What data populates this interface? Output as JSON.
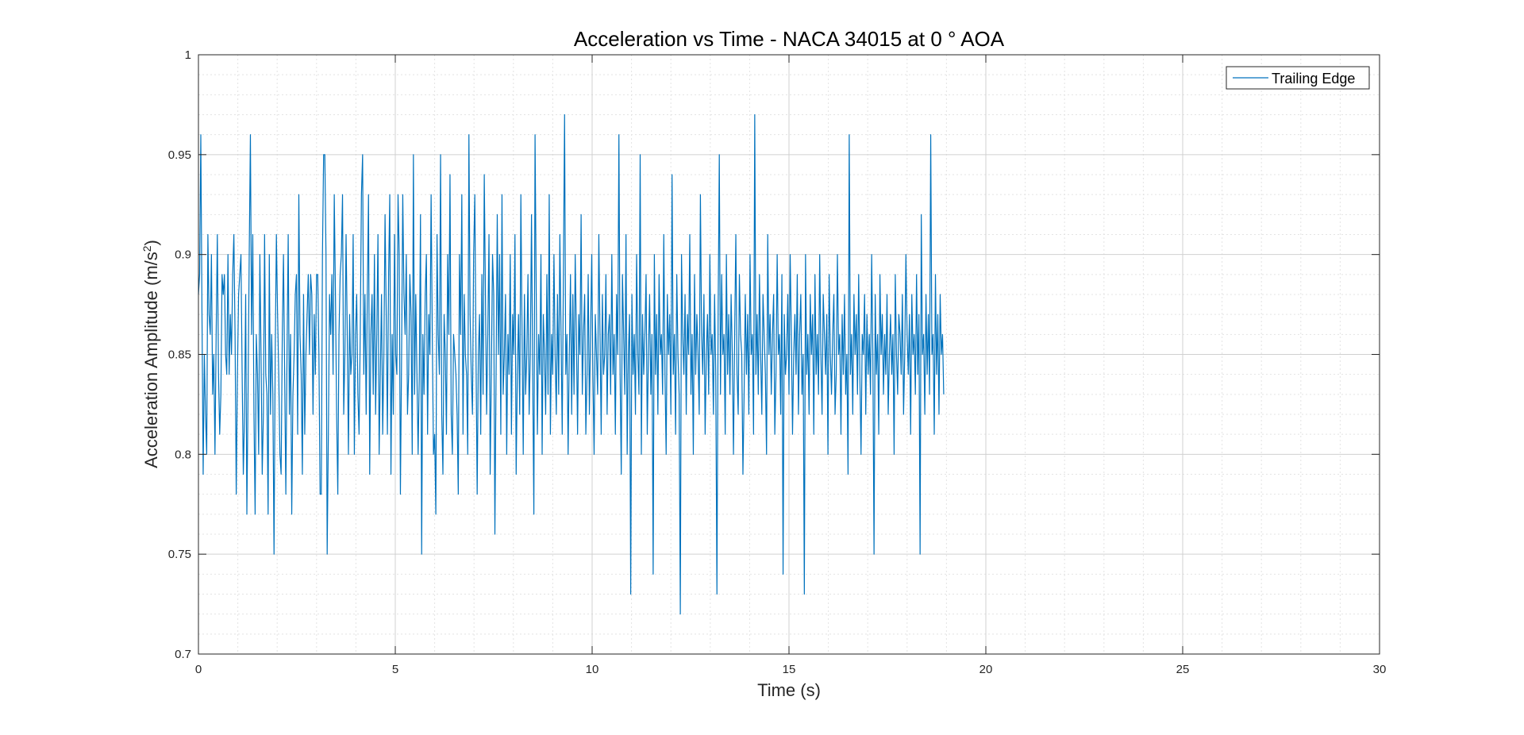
{
  "chart_data": {
    "type": "line",
    "title": "Acceleration vs Time - NACA 34015 at 0 ° AOA",
    "xlabel": "Time (s)",
    "ylabel_main": "Acceleration Amplitude (m/s",
    "ylabel_sup": "2",
    "ylabel_close": ")",
    "xlim": [
      0,
      30
    ],
    "ylim": [
      0.7,
      1.0
    ],
    "xticks": [
      "0",
      "5",
      "10",
      "15",
      "20",
      "25",
      "30"
    ],
    "yticks": [
      "0.7",
      "0.75",
      "0.8",
      "0.85",
      "0.9",
      "0.95",
      "1"
    ],
    "grid": true,
    "minor_grid": true,
    "legend_position": "top-right",
    "series": [
      {
        "name": "Trailing Edge",
        "color": "#0072BD",
        "dt": 0.03,
        "values": [
          0.88,
          0.89,
          0.96,
          0.87,
          0.79,
          0.85,
          0.82,
          0.8,
          0.91,
          0.87,
          0.86,
          0.9,
          0.83,
          0.85,
          0.8,
          0.86,
          0.91,
          0.84,
          0.81,
          0.83,
          0.89,
          0.88,
          0.89,
          0.85,
          0.84,
          0.9,
          0.84,
          0.87,
          0.85,
          0.89,
          0.91,
          0.86,
          0.78,
          0.84,
          0.88,
          0.89,
          0.9,
          0.84,
          0.79,
          0.82,
          0.88,
          0.77,
          0.83,
          0.9,
          0.96,
          0.86,
          0.91,
          0.82,
          0.77,
          0.86,
          0.84,
          0.8,
          0.9,
          0.85,
          0.79,
          0.82,
          0.91,
          0.84,
          0.83,
          0.77,
          0.9,
          0.82,
          0.86,
          0.83,
          0.75,
          0.85,
          0.91,
          0.87,
          0.84,
          0.8,
          0.79,
          0.86,
          0.9,
          0.84,
          0.78,
          0.85,
          0.91,
          0.82,
          0.86,
          0.77,
          0.83,
          0.85,
          0.88,
          0.89,
          0.81,
          0.93,
          0.86,
          0.84,
          0.79,
          0.88,
          0.81,
          0.85,
          0.87,
          0.89,
          0.85,
          0.89,
          0.88,
          0.82,
          0.87,
          0.84,
          0.89,
          0.89,
          0.85,
          0.78,
          0.78,
          0.9,
          0.95,
          0.95,
          0.9,
          0.75,
          0.81,
          0.88,
          0.86,
          0.89,
          0.84,
          0.93,
          0.88,
          0.82,
          0.78,
          0.86,
          0.89,
          0.9,
          0.93,
          0.82,
          0.85,
          0.91,
          0.86,
          0.8,
          0.87,
          0.84,
          0.85,
          0.91,
          0.8,
          0.86,
          0.88,
          0.83,
          0.81,
          0.86,
          0.93,
          0.95,
          0.84,
          0.88,
          0.82,
          0.88,
          0.93,
          0.79,
          0.86,
          0.88,
          0.83,
          0.9,
          0.82,
          0.86,
          0.91,
          0.8,
          0.84,
          0.88,
          0.81,
          0.85,
          0.92,
          0.87,
          0.81,
          0.89,
          0.93,
          0.79,
          0.86,
          0.82,
          0.91,
          0.85,
          0.84,
          0.93,
          0.9,
          0.78,
          0.85,
          0.93,
          0.88,
          0.86,
          0.9,
          0.82,
          0.84,
          0.89,
          0.87,
          0.8,
          0.95,
          0.83,
          0.88,
          0.84,
          0.8,
          0.84,
          0.92,
          0.75,
          0.86,
          0.83,
          0.88,
          0.9,
          0.81,
          0.87,
          0.85,
          0.93,
          0.86,
          0.8,
          0.81,
          0.77,
          0.91,
          0.86,
          0.84,
          0.95,
          0.82,
          0.79,
          0.87,
          0.85,
          0.81,
          0.9,
          0.86,
          0.94,
          0.82,
          0.8,
          0.86,
          0.85,
          0.84,
          0.82,
          0.78,
          0.9,
          0.86,
          0.93,
          0.81,
          0.88,
          0.85,
          0.84,
          0.8,
          0.96,
          0.87,
          0.84,
          0.82,
          0.9,
          0.93,
          0.85,
          0.78,
          0.85,
          0.87,
          0.81,
          0.89,
          0.83,
          0.94,
          0.88,
          0.82,
          0.86,
          0.91,
          0.79,
          0.84,
          0.9,
          0.88,
          0.76,
          0.84,
          0.92,
          0.85,
          0.9,
          0.81,
          0.93,
          0.83,
          0.85,
          0.88,
          0.8,
          0.86,
          0.84,
          0.9,
          0.81,
          0.87,
          0.85,
          0.91,
          0.79,
          0.84,
          0.87,
          0.82,
          0.93,
          0.86,
          0.8,
          0.88,
          0.83,
          0.85,
          0.89,
          0.82,
          0.85,
          0.92,
          0.84,
          0.77,
          0.96,
          0.88,
          0.81,
          0.86,
          0.84,
          0.9,
          0.8,
          0.87,
          0.85,
          0.82,
          0.89,
          0.83,
          0.93,
          0.81,
          0.86,
          0.84,
          0.9,
          0.85,
          0.82,
          0.88,
          0.83,
          0.91,
          0.86,
          0.81,
          0.89,
          0.97,
          0.84,
          0.86,
          0.8,
          0.85,
          0.89,
          0.82,
          0.88,
          0.83,
          0.9,
          0.86,
          0.81,
          0.87,
          0.85,
          0.92,
          0.83,
          0.86,
          0.88,
          0.81,
          0.84,
          0.89,
          0.82,
          0.86,
          0.9,
          0.84,
          0.8,
          0.87,
          0.85,
          0.83,
          0.91,
          0.86,
          0.81,
          0.88,
          0.84,
          0.85,
          0.89,
          0.82,
          0.86,
          0.87,
          0.83,
          0.9,
          0.84,
          0.86,
          0.81,
          0.88,
          0.85,
          0.96,
          0.84,
          0.79,
          0.89,
          0.86,
          0.83,
          0.91,
          0.8,
          0.85,
          0.87,
          0.73,
          0.88,
          0.84,
          0.86,
          0.82,
          0.9,
          0.85,
          0.83,
          0.95,
          0.8,
          0.87,
          0.84,
          0.86,
          0.89,
          0.81,
          0.85,
          0.88,
          0.83,
          0.86,
          0.74,
          0.9,
          0.84,
          0.87,
          0.82,
          0.89,
          0.85,
          0.86,
          0.83,
          0.91,
          0.84,
          0.8,
          0.88,
          0.85,
          0.87,
          0.82,
          0.94,
          0.84,
          0.86,
          0.81,
          0.89,
          0.85,
          0.83,
          0.72,
          0.9,
          0.86,
          0.84,
          0.88,
          0.82,
          0.87,
          0.85,
          0.91,
          0.83,
          0.86,
          0.8,
          0.89,
          0.84,
          0.87,
          0.85,
          0.82,
          0.93,
          0.86,
          0.84,
          0.88,
          0.81,
          0.85,
          0.87,
          0.83,
          0.9,
          0.85,
          0.86,
          0.82,
          0.88,
          0.84,
          0.73,
          0.87,
          0.95,
          0.83,
          0.89,
          0.85,
          0.86,
          0.81,
          0.9,
          0.84,
          0.87,
          0.83,
          0.88,
          0.85,
          0.8,
          0.86,
          0.91,
          0.84,
          0.82,
          0.89,
          0.86,
          0.85,
          0.79,
          0.83,
          0.88,
          0.84,
          0.87,
          0.82,
          0.9,
          0.85,
          0.86,
          0.81,
          0.97,
          0.84,
          0.87,
          0.83,
          0.89,
          0.85,
          0.82,
          0.88,
          0.86,
          0.84,
          0.8,
          0.91,
          0.85,
          0.87,
          0.83,
          0.86,
          0.88,
          0.81,
          0.84,
          0.9,
          0.85,
          0.86,
          0.82,
          0.89,
          0.74,
          0.87,
          0.84,
          0.85,
          0.88,
          0.83,
          0.9,
          0.86,
          0.81,
          0.85,
          0.87,
          0.84,
          0.89,
          0.82,
          0.86,
          0.88,
          0.83,
          0.85,
          0.73,
          0.9,
          0.84,
          0.86,
          0.82,
          0.88,
          0.85,
          0.87,
          0.81,
          0.89,
          0.84,
          0.86,
          0.83,
          0.9,
          0.85,
          0.82,
          0.88,
          0.86,
          0.84,
          0.87,
          0.8,
          0.89,
          0.85,
          0.83,
          0.86,
          0.88,
          0.82,
          0.84,
          0.9,
          0.85,
          0.86,
          0.81,
          0.87,
          0.84,
          0.88,
          0.83,
          0.85,
          0.79,
          0.96,
          0.84,
          0.86,
          0.82,
          0.88,
          0.85,
          0.87,
          0.83,
          0.89,
          0.84,
          0.8,
          0.86,
          0.85,
          0.88,
          0.82,
          0.87,
          0.84,
          0.86,
          0.83,
          0.9,
          0.85,
          0.75,
          0.88,
          0.84,
          0.86,
          0.81,
          0.89,
          0.85,
          0.87,
          0.83,
          0.86,
          0.84,
          0.88,
          0.82,
          0.85,
          0.87,
          0.84,
          0.86,
          0.8,
          0.89,
          0.85,
          0.83,
          0.87,
          0.86,
          0.84,
          0.88,
          0.82,
          0.85,
          0.9,
          0.86,
          0.84,
          0.87,
          0.81,
          0.88,
          0.85,
          0.86,
          0.83,
          0.89,
          0.84,
          0.87,
          0.75,
          0.92,
          0.85,
          0.86,
          0.82,
          0.88,
          0.84,
          0.87,
          0.83,
          0.96,
          0.85,
          0.86,
          0.81,
          0.89,
          0.84,
          0.87,
          0.82,
          0.88,
          0.85,
          0.86,
          0.83
        ]
      }
    ]
  }
}
